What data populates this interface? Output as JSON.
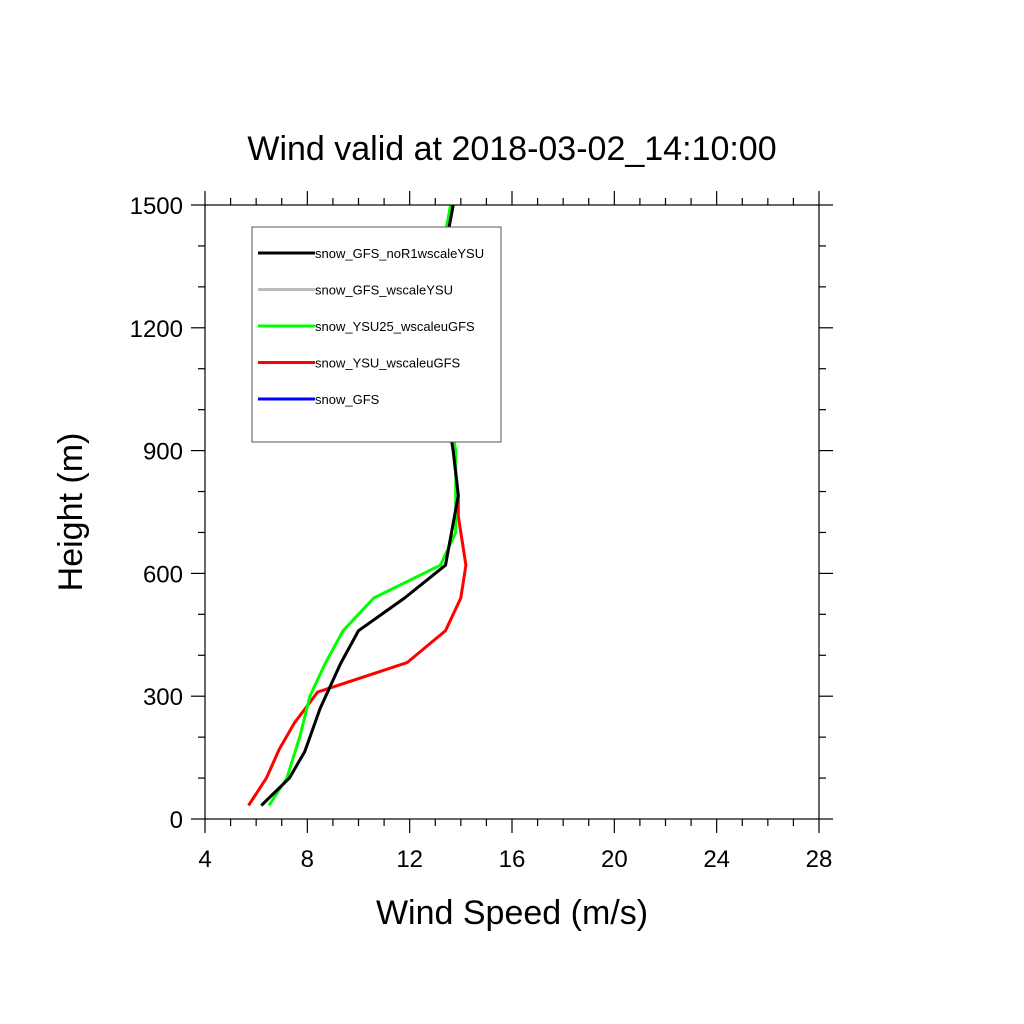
{
  "chart_data": {
    "type": "line",
    "title": "Wind valid at 2018-03-02_14:10:00",
    "xlabel": "Wind Speed (m/s)",
    "ylabel": "Height (m)",
    "xlim": [
      4,
      28
    ],
    "ylim": [
      0,
      1500
    ],
    "xticks": [
      4,
      8,
      12,
      16,
      20,
      24,
      28
    ],
    "yticks": [
      0,
      300,
      600,
      900,
      1200,
      1500
    ],
    "grid": false,
    "legend_position": "top-left",
    "series": [
      {
        "name": "snow_GFS_noR1wscaleYSU",
        "color": "#000000",
        "points": [
          [
            6.2,
            33
          ],
          [
            7.3,
            100
          ],
          [
            7.9,
            165
          ],
          [
            8.5,
            270
          ],
          [
            9.3,
            380
          ],
          [
            10.0,
            460
          ],
          [
            11.8,
            540
          ],
          [
            13.4,
            620
          ],
          [
            13.9,
            790
          ],
          [
            13.7,
            900
          ],
          [
            13.2,
            1100
          ],
          [
            13.1,
            1300
          ],
          [
            13.7,
            1500
          ]
        ]
      },
      {
        "name": "snow_GFS_wscaleYSU",
        "color": "#bbbbbb",
        "points": [
          [
            6.2,
            33
          ],
          [
            7.3,
            100
          ],
          [
            7.9,
            165
          ],
          [
            8.5,
            270
          ],
          [
            9.3,
            380
          ],
          [
            10.0,
            460
          ],
          [
            11.8,
            540
          ],
          [
            13.4,
            620
          ],
          [
            13.9,
            790
          ],
          [
            13.7,
            900
          ],
          [
            13.2,
            1100
          ],
          [
            13.1,
            1300
          ],
          [
            13.7,
            1500
          ]
        ]
      },
      {
        "name": "snow_YSU25_wscaleuGFS",
        "color": "#00ff00",
        "points": [
          [
            6.5,
            33
          ],
          [
            7.2,
            100
          ],
          [
            7.7,
            200
          ],
          [
            8.1,
            300
          ],
          [
            8.7,
            380
          ],
          [
            9.4,
            460
          ],
          [
            10.6,
            540
          ],
          [
            13.2,
            620
          ],
          [
            13.8,
            700
          ],
          [
            13.8,
            900
          ],
          [
            13.1,
            1150
          ],
          [
            13.0,
            1300
          ],
          [
            13.6,
            1500
          ]
        ]
      },
      {
        "name": "snow_YSU_wscaleuGFS",
        "color": "#ff0000",
        "points": [
          [
            5.7,
            33
          ],
          [
            6.4,
            100
          ],
          [
            6.9,
            170
          ],
          [
            7.5,
            235
          ],
          [
            8.4,
            310
          ],
          [
            11.9,
            382
          ],
          [
            13.4,
            460
          ],
          [
            14.0,
            540
          ],
          [
            14.2,
            620
          ],
          [
            13.9,
            740
          ],
          [
            13.9,
            790
          ],
          [
            13.7,
            900
          ],
          [
            13.2,
            1100
          ],
          [
            13.1,
            1300
          ],
          [
            13.7,
            1500
          ]
        ]
      },
      {
        "name": "snow_GFS",
        "color": "#0000ff",
        "points": []
      }
    ]
  }
}
